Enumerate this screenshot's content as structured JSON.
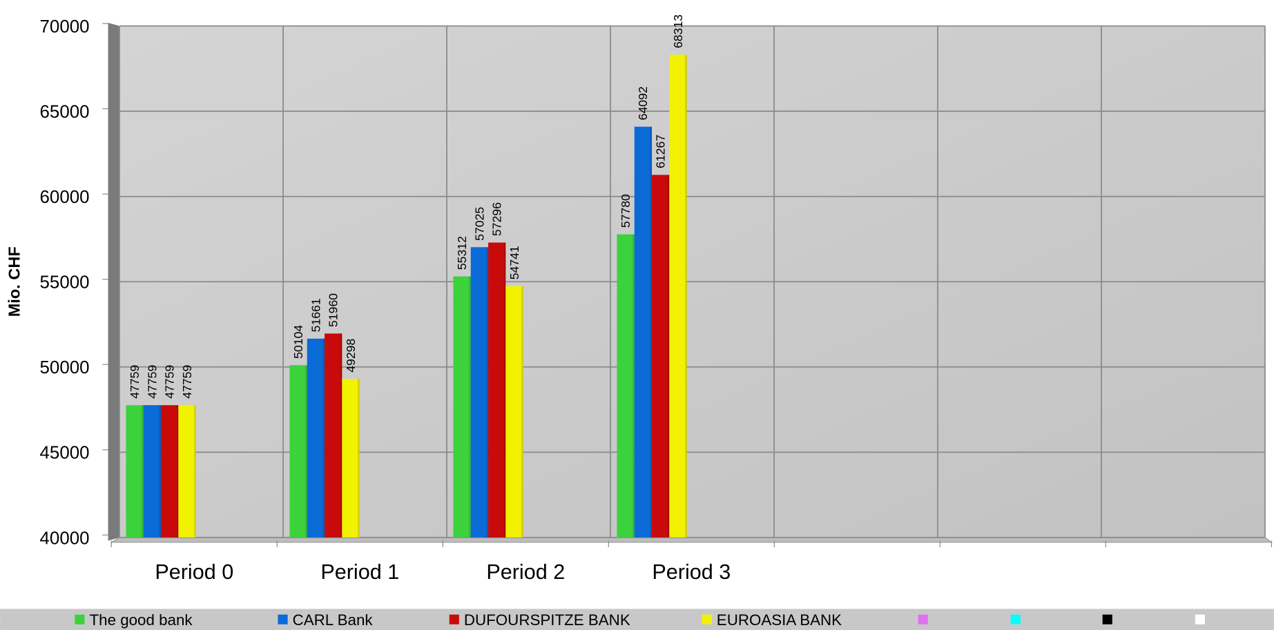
{
  "chart_data": {
    "type": "bar",
    "y_label": "Mio. CHF",
    "categories": [
      "Period 0",
      "Period 1",
      "Period 2",
      "Period 3",
      null,
      null,
      null
    ],
    "series": [
      {
        "name": "The good bank",
        "color": "#3cd23c",
        "values": [
          47759,
          50104,
          55312,
          57780,
          null,
          null,
          null
        ]
      },
      {
        "name": "CARL Bank",
        "color": "#0a6ad6",
        "values": [
          47759,
          51661,
          57025,
          64092,
          null,
          null,
          null
        ]
      },
      {
        "name": "DUFOURSPITZE BANK",
        "color": "#c80a0a",
        "values": [
          47759,
          51960,
          57296,
          61267,
          null,
          null,
          null
        ]
      },
      {
        "name": "EUROASIA BANK",
        "color": "#f2f200",
        "values": [
          47759,
          49298,
          54741,
          68313,
          null,
          null,
          null
        ]
      },
      {
        "name": null,
        "color": "#e070f0",
        "values": [
          null,
          null,
          null,
          null,
          null,
          null,
          null
        ]
      },
      {
        "name": null,
        "color": "#00ffff",
        "values": [
          null,
          null,
          null,
          null,
          null,
          null,
          null
        ]
      },
      {
        "name": null,
        "color": "#000000",
        "values": [
          null,
          null,
          null,
          null,
          null,
          null,
          null
        ]
      },
      {
        "name": null,
        "color": "#ffffff",
        "values": [
          null,
          null,
          null,
          null,
          null,
          null,
          null
        ]
      }
    ],
    "ylim": [
      40000,
      70000
    ],
    "yticks": [
      40000,
      45000,
      50000,
      55000,
      60000,
      65000,
      70000
    ],
    "grid": true,
    "legend": "bottom"
  }
}
